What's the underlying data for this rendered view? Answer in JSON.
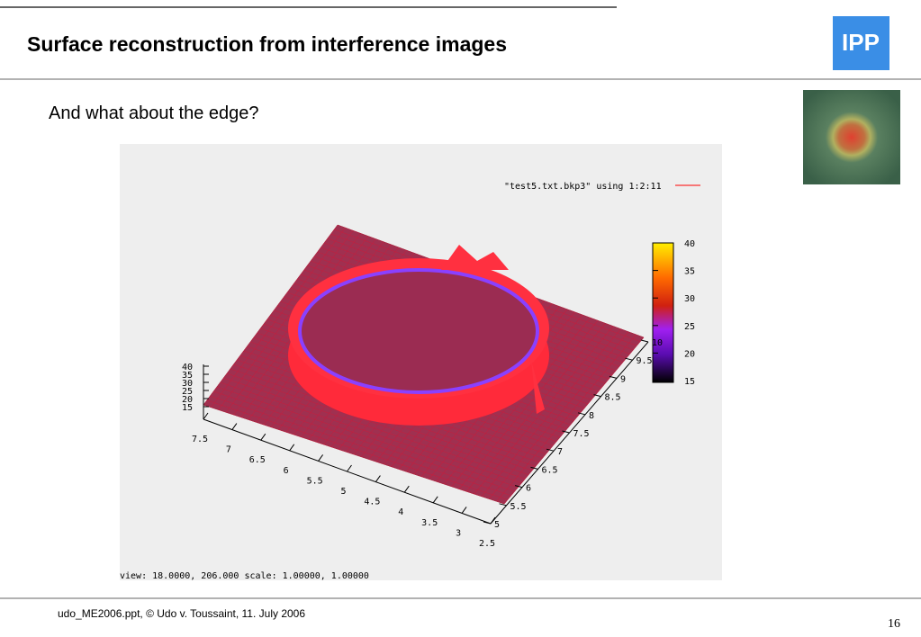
{
  "header": {
    "title": "Surface reconstruction from interference images",
    "logo": "IPP"
  },
  "subtitle": "And what about the edge?",
  "plot": {
    "legend": "\"test5.txt.bkp3\" using 1:2:11",
    "colorbar_ticks": [
      "40",
      "35",
      "30",
      "25",
      "20",
      "15"
    ],
    "z_ticks": [
      "40",
      "35",
      "30",
      "25",
      "20",
      "15"
    ],
    "x_ticks": [
      "7.5",
      "7",
      "6.5",
      "6",
      "5.5",
      "5",
      "4.5",
      "4",
      "3.5",
      "3",
      "2.5"
    ],
    "y_ticks": [
      "5",
      "5.5",
      "6",
      "6.5",
      "7",
      "7.5",
      "8",
      "8.5",
      "9",
      "9.5",
      "10"
    ],
    "status": "view:  18.0000,  206.000   scale:  1.00000,  1.00000"
  },
  "footer": {
    "source": "udo_ME2006.ppt, © Udo v. Toussaint, 11. July 2006",
    "page": "16"
  }
}
